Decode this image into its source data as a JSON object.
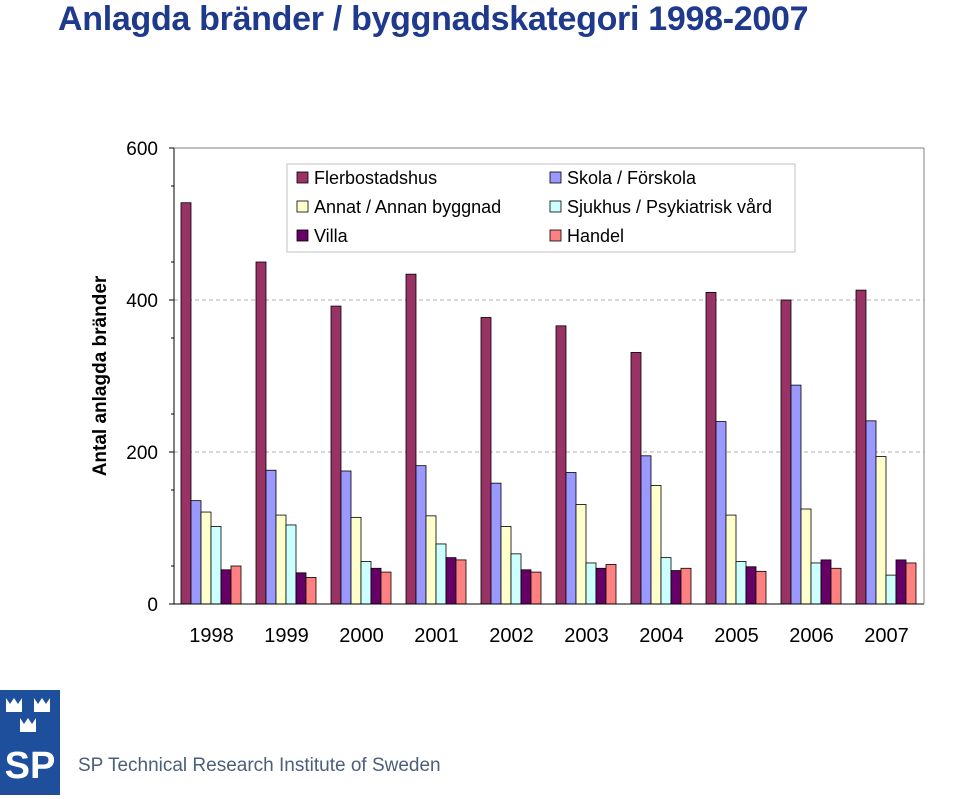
{
  "page": {
    "title": "Anlagda bränder / byggnadskategori 1998-2007",
    "footer_text": "SP Technical Research Institute of Sweden",
    "logo_text": "SP"
  },
  "chart_data": {
    "type": "bar",
    "title": "Anlagda bränder / byggnadskategori 1998-2007",
    "xlabel": "",
    "ylabel": "Antal anlagda bränder",
    "ylim": [
      0,
      600
    ],
    "yticks": [
      0,
      200,
      400,
      600
    ],
    "grid": "horizontal dashed",
    "legend_position": "top",
    "categories": [
      "1998",
      "1999",
      "2000",
      "2001",
      "2002",
      "2003",
      "2004",
      "2005",
      "2006",
      "2007"
    ],
    "series": [
      {
        "name": "Flerbostadshus",
        "color": "#993366",
        "values": [
          528,
          450,
          392,
          434,
          377,
          366,
          331,
          410,
          400,
          413
        ]
      },
      {
        "name": "Skola / Förskola",
        "color": "#9999ff",
        "values": [
          136,
          176,
          175,
          182,
          159,
          173,
          195,
          240,
          288,
          241
        ]
      },
      {
        "name": "Annat / Annan byggnad",
        "color": "#ffffcc",
        "values": [
          121,
          117,
          114,
          116,
          102,
          131,
          156,
          117,
          125,
          194
        ]
      },
      {
        "name": "Sjukhus / Psykiatrisk vård",
        "color": "#ccffff",
        "values": [
          102,
          104,
          56,
          79,
          66,
          54,
          61,
          56,
          54,
          38
        ]
      },
      {
        "name": "Villa",
        "color": "#660066",
        "values": [
          45,
          41,
          47,
          61,
          45,
          47,
          44,
          49,
          58,
          58
        ]
      },
      {
        "name": "Handel",
        "color": "#ff8080",
        "values": [
          50,
          35,
          42,
          58,
          42,
          52,
          47,
          43,
          47,
          54
        ]
      }
    ]
  }
}
